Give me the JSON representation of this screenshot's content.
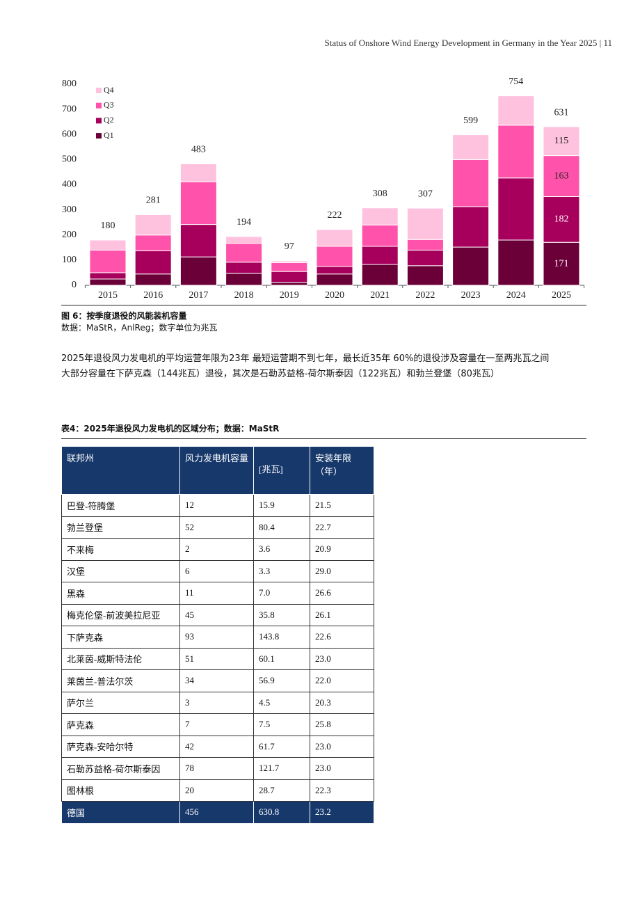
{
  "header": {
    "running_title": "Status of Onshore Wind Energy Development in Germany in the Year 2025 | 11"
  },
  "chart_data": {
    "type": "stacked_bar",
    "categories": [
      "2015",
      "2016",
      "2017",
      "2018",
      "2019",
      "2020",
      "2021",
      "2022",
      "2023",
      "2024",
      "2025"
    ],
    "series": [
      {
        "name": "Q1",
        "color": "#6b0038",
        "values": [
          25,
          45,
          113,
          48,
          12,
          45,
          83,
          78,
          152,
          180,
          171
        ]
      },
      {
        "name": "Q2",
        "color": "#a6005c",
        "values": [
          25,
          92,
          129,
          44,
          43,
          30,
          72,
          62,
          161,
          247,
          182
        ]
      },
      {
        "name": "Q3",
        "color": "#ff52aa",
        "values": [
          90,
          63,
          170,
          75,
          35,
          80,
          85,
          42,
          187,
          210,
          163
        ]
      },
      {
        "name": "Q4",
        "color": "#ffc2de",
        "values": [
          40,
          81,
          71,
          27,
          7,
          67,
          68,
          125,
          99,
          117,
          115
        ]
      }
    ],
    "totals": [
      180,
      281,
      483,
      194,
      97,
      222,
      308,
      307,
      599,
      754,
      631
    ],
    "ylim": [
      0,
      800
    ],
    "yticks": [
      0,
      100,
      200,
      300,
      400,
      500,
      600,
      700,
      800
    ],
    "legend": "upper left"
  },
  "caption": {
    "title": "图 6：按季度退役的风能装机容量",
    "source": "数据：MaStR，AnlReg；数字单位为兆瓦"
  },
  "paragraph": [
    "2025年退役风力发电机的平均运营年限为23年 最短运营期不到七年，最长近35年 60%的退役涉及容量在一至两兆瓦之间",
    "大部分容量在下萨克森（144兆瓦）退役，其次是石勒苏益格-荷尔斯泰因（122兆瓦）和勃兰登堡（80兆瓦）"
  ],
  "table": {
    "title": "表4：2025年退役风力发电机的区域分布；数据：MaStR",
    "header": [
      "联邦州",
      "风力发电机容量",
      "[兆瓦]",
      "安装年限（年）"
    ],
    "rows": [
      [
        "巴登-符腾堡",
        "12",
        "15.9",
        "21.5"
      ],
      [
        "勃兰登堡",
        "52",
        "80.4",
        "22.7"
      ],
      [
        "不来梅",
        "2",
        "3.6",
        "20.9"
      ],
      [
        "汉堡",
        "6",
        "3.3",
        "29.0"
      ],
      [
        "黑森",
        "11",
        "7.0",
        "26.6"
      ],
      [
        "梅克伦堡-前波美拉尼亚",
        "45",
        "35.8",
        "26.1"
      ],
      [
        "下萨克森",
        "93",
        "143.8",
        "22.6"
      ],
      [
        "北莱茵-威斯特法伦",
        "51",
        "60.1",
        "23.0"
      ],
      [
        "莱茵兰-普法尔茨",
        "34",
        "56.9",
        "22.0"
      ],
      [
        "萨尔兰",
        "3",
        "4.5",
        "20.3"
      ],
      [
        "萨克森",
        "7",
        "7.5",
        "25.8"
      ],
      [
        "萨克森-安哈尔特",
        "42",
        "61.7",
        "23.0"
      ],
      [
        "石勒苏益格-荷尔斯泰因",
        "78",
        "121.7",
        "23.0"
      ],
      [
        "图林根",
        "20",
        "28.7",
        "22.3"
      ]
    ],
    "total": [
      "德国",
      "456",
      "630.8",
      "23.2"
    ]
  }
}
